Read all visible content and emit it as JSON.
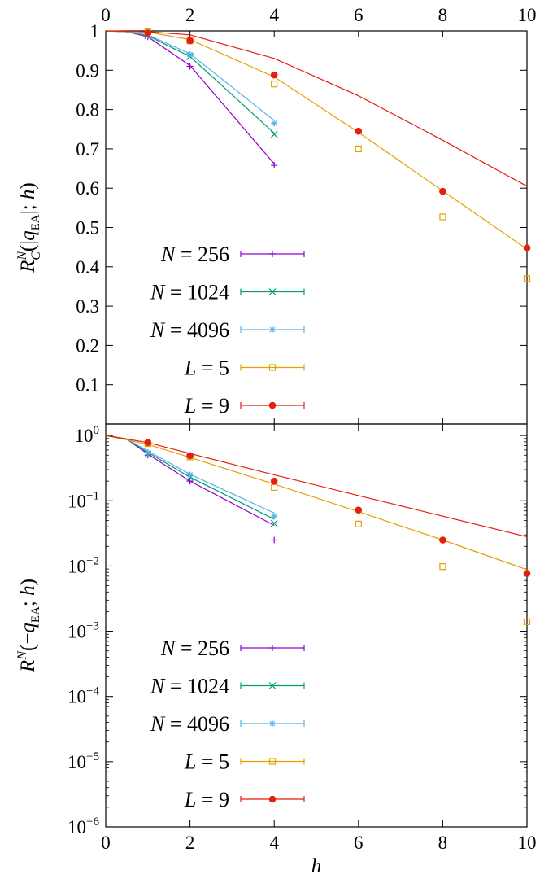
{
  "chart_data": [
    {
      "type": "line",
      "panel": "top",
      "ylabel": "R_C^N(|q_EA|; h)",
      "yscale": "linear",
      "ylim": [
        0,
        1
      ],
      "xlim": [
        0,
        10
      ],
      "grid": false,
      "legend_position": "bottom-left",
      "x_ticks": [
        "0",
        "2",
        "4",
        "6",
        "8",
        "10"
      ],
      "y_ticks": [
        "0.1",
        "0.2",
        "0.3",
        "0.4",
        "0.5",
        "0.6",
        "0.7",
        "0.8",
        "0.9",
        "1"
      ],
      "series": [
        {
          "name": "N = 256",
          "var": "N",
          "value": "256",
          "color": "#9400d3",
          "marker": "plus",
          "line": {
            "x": [
              0,
              0.5,
              1,
              2,
              4
            ],
            "y": [
              1,
              0.998,
              0.985,
              0.912,
              0.662
            ]
          },
          "points": {
            "x": [
              1,
              2,
              4
            ],
            "y": [
              0.985,
              0.91,
              0.658
            ]
          }
        },
        {
          "name": "N = 1024",
          "var": "N",
          "value": "1024",
          "color": "#009e73",
          "marker": "x",
          "line": {
            "x": [
              0,
              0.5,
              1,
              2,
              4
            ],
            "y": [
              1,
              0.998,
              0.988,
              0.935,
              0.74
            ]
          },
          "points": {
            "x": [
              1,
              2,
              4
            ],
            "y": [
              0.988,
              0.935,
              0.737
            ]
          }
        },
        {
          "name": "N = 4096",
          "var": "N",
          "value": "4096",
          "color": "#56b4e9",
          "marker": "star",
          "line": {
            "x": [
              0,
              0.5,
              1,
              2,
              4
            ],
            "y": [
              1,
              0.998,
              0.99,
              0.942,
              0.772
            ]
          },
          "points": {
            "x": [
              1,
              2,
              4
            ],
            "y": [
              0.99,
              0.94,
              0.765
            ]
          }
        },
        {
          "name": "L = 5",
          "var": "L",
          "value": "5",
          "color": "#e69f00",
          "marker": "square",
          "line": {
            "x": [
              0,
              1,
              2,
              4,
              6,
              8,
              10
            ],
            "y": [
              1,
              0.997,
              0.978,
              0.883,
              0.742,
              0.593,
              0.445
            ]
          },
          "points": {
            "x": [
              1,
              2,
              4,
              6,
              8,
              10
            ],
            "y": [
              0.998,
              0.975,
              0.865,
              0.7,
              0.527,
              0.37
            ]
          }
        },
        {
          "name": "L = 9",
          "var": "L",
          "value": "9",
          "color": "#e51e10",
          "marker": "circle",
          "line": {
            "x": [
              0,
              1,
              2,
              4,
              6,
              8,
              10
            ],
            "y": [
              1,
              0.998,
              0.99,
              0.93,
              0.835,
              0.722,
              0.605
            ]
          },
          "points": {
            "x": [
              1,
              2,
              4,
              6,
              8,
              10
            ],
            "y": [
              0.995,
              0.975,
              0.888,
              0.745,
              0.592,
              0.448
            ]
          }
        }
      ]
    },
    {
      "type": "line",
      "panel": "bottom",
      "xlabel": "h",
      "ylabel": "R^N(−q_EA; h)",
      "yscale": "log",
      "ylim": [
        1e-06,
        1.5
      ],
      "xlim": [
        0,
        10
      ],
      "grid": false,
      "legend_position": "bottom-left",
      "x_ticks": [
        "0",
        "2",
        "4",
        "6",
        "8",
        "10"
      ],
      "y_ticks": [
        {
          "base": "10",
          "exp": "0",
          "value": 1
        },
        {
          "base": "10",
          "exp": "−1",
          "value": 0.1
        },
        {
          "base": "10",
          "exp": "−2",
          "value": 0.01
        },
        {
          "base": "10",
          "exp": "−3",
          "value": 0.001
        },
        {
          "base": "10",
          "exp": "−4",
          "value": 0.0001
        },
        {
          "base": "10",
          "exp": "−5",
          "value": 1e-05
        },
        {
          "base": "10",
          "exp": "−6",
          "value": 1e-06
        }
      ],
      "series": [
        {
          "name": "N = 256",
          "var": "N",
          "value": "256",
          "color": "#9400d3",
          "marker": "plus",
          "line": {
            "x": [
              0,
              0.5,
              1,
              2,
              4
            ],
            "y": [
              1,
              0.88,
              0.52,
              0.2,
              0.042
            ]
          },
          "points": {
            "x": [
              1,
              2,
              4
            ],
            "y": [
              0.5,
              0.2,
              0.025
            ]
          }
        },
        {
          "name": "N = 1024",
          "var": "N",
          "value": "1024",
          "color": "#009e73",
          "marker": "x",
          "line": {
            "x": [
              0,
              0.5,
              1,
              2,
              4
            ],
            "y": [
              1,
              0.88,
              0.55,
              0.23,
              0.052
            ]
          },
          "points": {
            "x": [
              1,
              2,
              4
            ],
            "y": [
              0.52,
              0.23,
              0.045
            ]
          }
        },
        {
          "name": "N = 4096",
          "var": "N",
          "value": "4096",
          "color": "#56b4e9",
          "marker": "star",
          "line": {
            "x": [
              0,
              0.5,
              1,
              2,
              4
            ],
            "y": [
              1,
              0.89,
              0.58,
              0.255,
              0.065
            ]
          },
          "points": {
            "x": [
              1,
              2,
              4
            ],
            "y": [
              0.55,
              0.25,
              0.058
            ]
          }
        },
        {
          "name": "L = 5",
          "var": "L",
          "value": "5",
          "color": "#e69f00",
          "marker": "square",
          "line": {
            "x": [
              0,
              1,
              2,
              4,
              6,
              8,
              10
            ],
            "y": [
              1,
              0.73,
              0.46,
              0.18,
              0.068,
              0.025,
              0.0088
            ]
          },
          "points": {
            "x": [
              1,
              2,
              4,
              6,
              8,
              10
            ],
            "y": [
              0.75,
              0.47,
              0.16,
              0.044,
              0.0098,
              0.0014
            ]
          }
        },
        {
          "name": "L = 9",
          "var": "L",
          "value": "9",
          "color": "#e51e10",
          "marker": "circle",
          "line": {
            "x": [
              0,
              1,
              2,
              4,
              6,
              8,
              10
            ],
            "y": [
              1,
              0.78,
              0.53,
              0.25,
              0.12,
              0.058,
              0.028
            ]
          },
          "points": {
            "x": [
              1,
              2,
              4,
              6,
              8,
              10
            ],
            "y": [
              0.78,
              0.49,
              0.2,
              0.072,
              0.025,
              0.0077
            ]
          }
        }
      ]
    }
  ]
}
